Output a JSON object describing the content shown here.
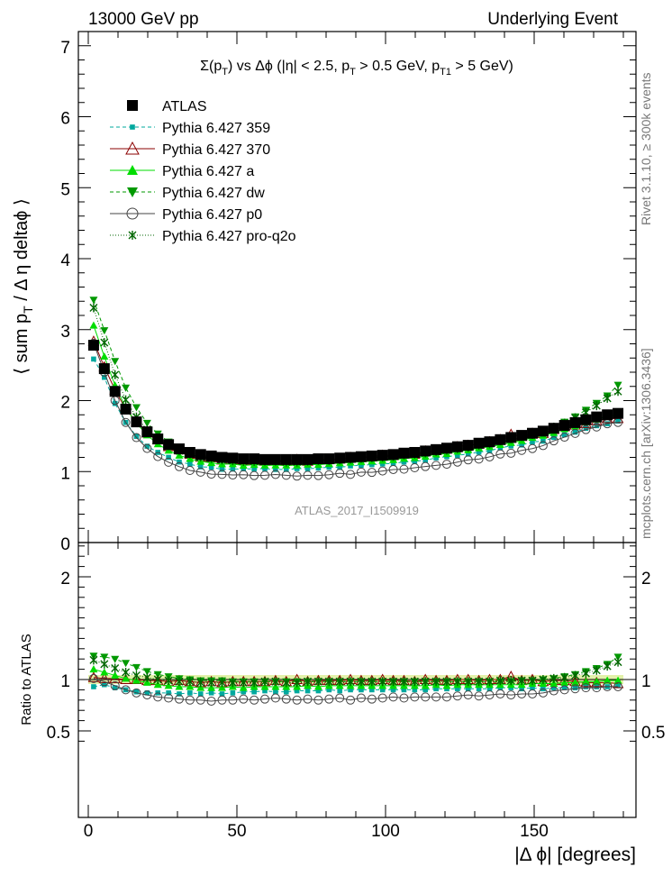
{
  "header": {
    "left": "13000 GeV pp",
    "right": "Underlying Event"
  },
  "side": {
    "rivet": "Rivet 3.1.10, ≥ 300k events",
    "mcplots": "mcplots.cern.ch [arXiv:1306.3436]"
  },
  "chart_data": {
    "type": "line",
    "title": "Σ(p_T) vs Δϕ (|η| < 2.5, p_T > 0.5 GeV, p_T1 > 5 GeV)",
    "analysis_label": "ATLAS_2017_I1509919",
    "xlabel": "|Δ ϕ| [degrees]",
    "ylabel": "⟨ sum p_T / Δ η deltaϕ ⟩",
    "ratio_ylabel": "Ratio to ATLAS",
    "xlim": [
      -3,
      184
    ],
    "ylim": [
      0,
      7.2
    ],
    "ratio_ylim": [
      0.35,
      2.35
    ],
    "x_ticks": [
      "0",
      "50",
      "100",
      "150"
    ],
    "y_ticks": [
      "0",
      "1",
      "2",
      "3",
      "4",
      "5",
      "6",
      "7"
    ],
    "ratio_ticks": [
      "0.5",
      "1",
      "2"
    ],
    "legend_position": "top-left",
    "grid": false,
    "x": [
      1.8,
      5.4,
      9.0,
      12.6,
      16.2,
      19.8,
      23.4,
      27.0,
      30.6,
      34.2,
      37.8,
      41.4,
      45.0,
      48.6,
      52.2,
      55.8,
      59.4,
      63.0,
      66.6,
      70.2,
      73.8,
      77.4,
      81.0,
      84.6,
      88.2,
      91.8,
      95.4,
      99.0,
      102.6,
      106.2,
      109.8,
      113.4,
      117.0,
      120.6,
      124.2,
      127.8,
      131.4,
      135.0,
      138.6,
      142.2,
      145.8,
      149.4,
      153.0,
      156.6,
      160.2,
      163.8,
      167.4,
      171.0,
      174.6,
      178.2
    ],
    "data": {
      "name": "ATLAS",
      "values": [
        2.78,
        2.45,
        2.13,
        1.88,
        1.7,
        1.56,
        1.46,
        1.38,
        1.32,
        1.27,
        1.24,
        1.22,
        1.2,
        1.19,
        1.18,
        1.18,
        1.17,
        1.17,
        1.17,
        1.17,
        1.17,
        1.18,
        1.18,
        1.19,
        1.2,
        1.21,
        1.22,
        1.23,
        1.24,
        1.26,
        1.27,
        1.29,
        1.31,
        1.33,
        1.35,
        1.37,
        1.4,
        1.42,
        1.45,
        1.48,
        1.51,
        1.54,
        1.57,
        1.61,
        1.65,
        1.69,
        1.73,
        1.77,
        1.8,
        1.82
      ]
    },
    "series": [
      {
        "name": "Pythia 6.427 359",
        "color": "#00a89e",
        "marker": "square-small",
        "dash": "4,3",
        "ratio": [
          0.93,
          0.95,
          0.92,
          0.9,
          0.88,
          0.87,
          0.87,
          0.87,
          0.86,
          0.87,
          0.86,
          0.87,
          0.86,
          0.87,
          0.88,
          0.88,
          0.89,
          0.88,
          0.88,
          0.89,
          0.89,
          0.89,
          0.9,
          0.89,
          0.9,
          0.9,
          0.9,
          0.9,
          0.9,
          0.9,
          0.9,
          0.9,
          0.91,
          0.91,
          0.91,
          0.91,
          0.91,
          0.91,
          0.92,
          0.92,
          0.91,
          0.92,
          0.91,
          0.92,
          0.92,
          0.92,
          0.93,
          0.93,
          0.93,
          0.94
        ]
      },
      {
        "name": "Pythia 6.427 370",
        "color": "#8b0000",
        "marker": "triangle-open",
        "dash": "",
        "ratio": [
          1.02,
          1.01,
          1.01,
          1.0,
          1.0,
          0.99,
          0.99,
          0.98,
          0.99,
          0.98,
          0.97,
          0.98,
          0.97,
          0.98,
          0.98,
          0.98,
          0.98,
          0.99,
          0.98,
          1.0,
          0.98,
          0.99,
          0.99,
          0.99,
          1.0,
          0.99,
          0.99,
          1.0,
          0.99,
          0.99,
          0.98,
          1.0,
          0.99,
          0.99,
          1.0,
          1.0,
          0.99,
          1.0,
          1.0,
          1.03,
          0.99,
          1.0,
          0.98,
          0.99,
          0.99,
          0.98,
          0.97,
          0.97,
          0.97,
          0.96
        ]
      },
      {
        "name": "Pythia 6.427 a",
        "color": "#00dd00",
        "marker": "triangle-filled",
        "dash": "",
        "ratio": [
          1.1,
          1.07,
          1.04,
          1.01,
          0.99,
          0.97,
          0.95,
          0.94,
          0.93,
          0.93,
          0.92,
          0.92,
          0.92,
          0.93,
          0.92,
          0.93,
          0.93,
          0.93,
          0.93,
          0.93,
          0.94,
          0.93,
          0.94,
          0.94,
          0.94,
          0.94,
          0.94,
          0.94,
          0.94,
          0.94,
          0.94,
          0.94,
          0.95,
          0.94,
          0.95,
          0.95,
          0.95,
          0.95,
          0.95,
          0.95,
          0.95,
          0.96,
          0.96,
          0.96,
          0.97,
          0.97,
          0.98,
          0.98,
          0.99,
          0.99
        ]
      },
      {
        "name": "Pythia 6.427 dw",
        "color": "#009900",
        "marker": "triangle-down-filled",
        "dash": "4,3",
        "ratio": [
          1.23,
          1.22,
          1.2,
          1.16,
          1.12,
          1.08,
          1.05,
          1.03,
          1.01,
          1.0,
          0.99,
          0.99,
          0.99,
          0.98,
          0.98,
          0.98,
          0.98,
          0.98,
          0.98,
          0.98,
          0.98,
          0.98,
          0.98,
          0.98,
          0.98,
          0.98,
          0.98,
          0.98,
          0.98,
          0.98,
          0.98,
          0.98,
          0.98,
          0.98,
          0.98,
          0.98,
          0.98,
          0.98,
          0.98,
          0.98,
          0.99,
          0.99,
          1.0,
          1.01,
          1.03,
          1.05,
          1.08,
          1.11,
          1.15,
          1.22
        ]
      },
      {
        "name": "Pythia 6.427 p0",
        "color": "#444444",
        "marker": "circle-open",
        "dash": "",
        "ratio": [
          1.01,
          0.98,
          0.94,
          0.9,
          0.87,
          0.85,
          0.83,
          0.82,
          0.81,
          0.8,
          0.8,
          0.79,
          0.8,
          0.8,
          0.81,
          0.8,
          0.81,
          0.82,
          0.81,
          0.8,
          0.81,
          0.8,
          0.81,
          0.82,
          0.8,
          0.82,
          0.81,
          0.82,
          0.83,
          0.82,
          0.83,
          0.83,
          0.83,
          0.83,
          0.84,
          0.85,
          0.84,
          0.85,
          0.86,
          0.85,
          0.86,
          0.86,
          0.87,
          0.89,
          0.9,
          0.91,
          0.92,
          0.92,
          0.93,
          0.93
        ]
      },
      {
        "name": "Pythia 6.427 pro-q2o",
        "color": "#006600",
        "marker": "star",
        "dash": "1,2",
        "ratio": [
          1.19,
          1.15,
          1.11,
          1.07,
          1.04,
          1.02,
          1.0,
          0.99,
          0.98,
          0.98,
          0.97,
          0.97,
          0.97,
          0.97,
          0.97,
          0.97,
          0.98,
          0.98,
          0.97,
          0.97,
          0.98,
          0.98,
          0.98,
          0.98,
          0.98,
          0.98,
          0.98,
          0.98,
          0.98,
          0.98,
          0.98,
          0.98,
          0.98,
          0.98,
          0.98,
          0.98,
          0.98,
          0.98,
          0.99,
          0.99,
          0.99,
          0.99,
          1.0,
          1.01,
          1.02,
          1.04,
          1.06,
          1.09,
          1.13,
          1.17
        ]
      }
    ]
  }
}
